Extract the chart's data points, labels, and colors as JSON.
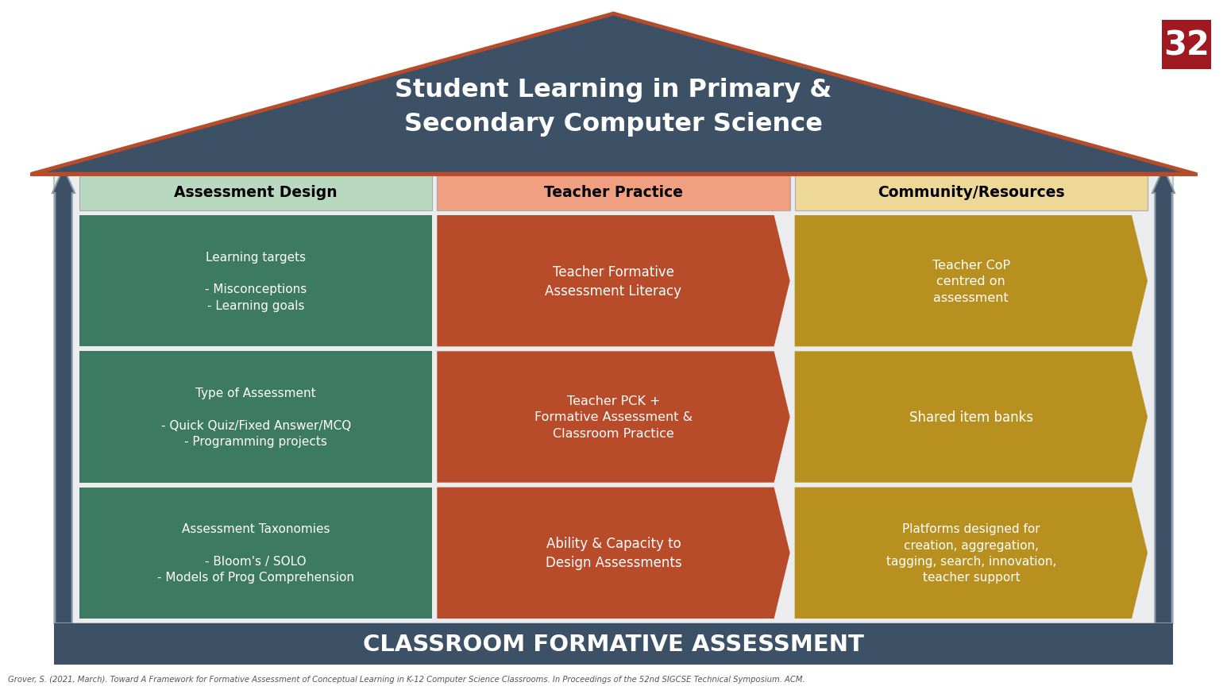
{
  "title": "Student Learning in Primary &\nSecondary Computer Science",
  "footer_title": "CLASSROOM FORMATIVE ASSESSMENT",
  "citation": "Grover, S. (2021, March). Toward A Framework for Formative Assessment of Conceptual Learning in K-12 Computer Science Classrooms. In Proceedings of the 52nd SIGCSE Technical Symposium. ACM.",
  "page_number": "32",
  "background_color": "#ffffff",
  "roof_color": "#3d5166",
  "roof_outline_color": "#b84c2a",
  "wall_bg_color": "#e8eaed",
  "footer_color": "#3d5166",
  "footer_text_color": "#ffffff",
  "page_badge_color": "#a01820",
  "arrow_pillar_color": "#3d5166",
  "arrow_pillar_outline": "#8899aa",
  "columns": [
    {
      "header": "Assessment Design",
      "header_bg": "#b8d8c0",
      "header_text_color": "#000000",
      "cells": [
        {
          "text": "Learning targets\n\n- Misconceptions\n- Learning goals",
          "bg": "#3d7a62",
          "text_color": "#ffffff",
          "shape": "rect"
        },
        {
          "text": "Type of Assessment\n\n- Quick Quiz/Fixed Answer/MCQ\n- Programming projects",
          "bg": "#3d7a62",
          "text_color": "#ffffff",
          "shape": "rect"
        },
        {
          "text": "Assessment Taxonomies\n\n- Bloom's / SOLO\n- Models of Prog Comprehension",
          "bg": "#3d7a62",
          "text_color": "#ffffff",
          "shape": "rect"
        }
      ]
    },
    {
      "header": "Teacher Practice",
      "header_bg": "#f0a080",
      "header_text_color": "#000000",
      "cells": [
        {
          "text": "Teacher Formative\nAssessment Literacy",
          "bg": "#b84c2a",
          "text_color": "#ffffff",
          "shape": "chevron"
        },
        {
          "text": "Teacher PCK +\nFormative Assessment &\nClassroom Practice",
          "bg": "#b84c2a",
          "text_color": "#ffffff",
          "shape": "chevron"
        },
        {
          "text": "Ability & Capacity to\nDesign Assessments",
          "bg": "#b84c2a",
          "text_color": "#ffffff",
          "shape": "chevron"
        }
      ]
    },
    {
      "header": "Community/Resources",
      "header_bg": "#eed898",
      "header_text_color": "#000000",
      "cells": [
        {
          "text": "Teacher CoP\ncentred on\nassessment",
          "bg": "#b89020",
          "text_color": "#ffffff",
          "shape": "chevron"
        },
        {
          "text": "Shared item banks",
          "bg": "#b89020",
          "text_color": "#ffffff",
          "shape": "chevron"
        },
        {
          "text": "Platforms designed for\ncreation, aggregation,\ntagging, search, innovation,\nteacher support",
          "bg": "#b89020",
          "text_color": "#ffffff",
          "shape": "chevron"
        }
      ]
    }
  ]
}
